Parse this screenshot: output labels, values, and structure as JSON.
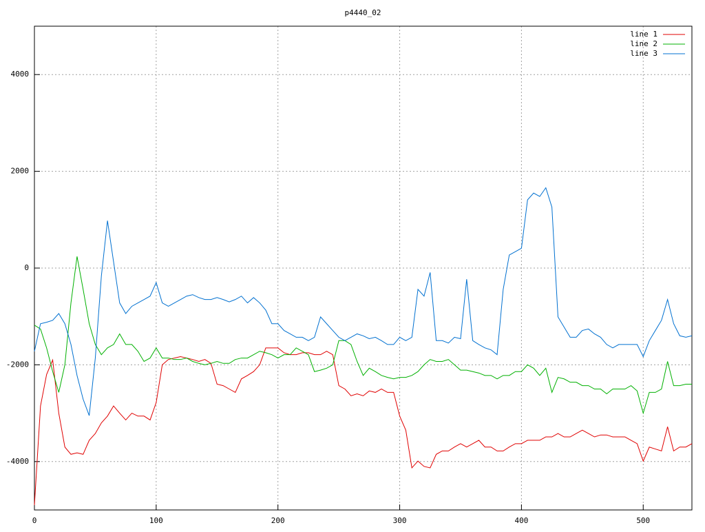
{
  "chart_data": {
    "type": "line",
    "title": "p4440_02",
    "x": [
      0,
      5,
      10,
      15,
      20,
      25,
      30,
      35,
      40,
      45,
      50,
      55,
      60,
      65,
      70,
      75,
      80,
      85,
      90,
      95,
      100,
      105,
      110,
      115,
      120,
      125,
      130,
      135,
      140,
      145,
      150,
      155,
      160,
      165,
      170,
      175,
      180,
      185,
      190,
      195,
      200,
      205,
      210,
      215,
      220,
      225,
      230,
      235,
      240,
      245,
      250,
      255,
      260,
      265,
      270,
      275,
      280,
      285,
      290,
      295,
      300,
      305,
      310,
      315,
      320,
      325,
      330,
      335,
      340,
      345,
      350,
      355,
      360,
      365,
      370,
      375,
      380,
      385,
      390,
      395,
      400,
      405,
      410,
      415,
      420,
      425,
      430,
      435,
      440,
      445,
      450,
      455,
      460,
      465,
      470,
      475,
      480,
      485,
      490,
      495,
      500,
      505,
      510,
      515,
      520,
      525,
      530,
      535,
      540
    ],
    "series": [
      {
        "name": "line 1",
        "color": "#e00000",
        "values": [
          -4900,
          -2850,
          -2200,
          -1900,
          -3000,
          -3700,
          -3850,
          -3820,
          -3850,
          -3560,
          -3420,
          -3200,
          -3060,
          -2850,
          -3000,
          -3140,
          -3000,
          -3060,
          -3060,
          -3140,
          -2780,
          -2000,
          -1890,
          -1860,
          -1830,
          -1860,
          -1890,
          -1930,
          -1890,
          -1970,
          -2400,
          -2430,
          -2500,
          -2570,
          -2290,
          -2220,
          -2140,
          -2000,
          -1650,
          -1650,
          -1650,
          -1750,
          -1790,
          -1790,
          -1750,
          -1750,
          -1790,
          -1790,
          -1720,
          -1790,
          -2430,
          -2500,
          -2640,
          -2600,
          -2640,
          -2540,
          -2570,
          -2500,
          -2570,
          -2570,
          -3060,
          -3350,
          -4130,
          -3990,
          -4100,
          -4130,
          -3850,
          -3780,
          -3780,
          -3700,
          -3630,
          -3700,
          -3630,
          -3560,
          -3700,
          -3700,
          -3780,
          -3780,
          -3700,
          -3630,
          -3630,
          -3560,
          -3560,
          -3560,
          -3490,
          -3490,
          -3420,
          -3490,
          -3490,
          -3420,
          -3350,
          -3420,
          -3490,
          -3450,
          -3450,
          -3490,
          -3490,
          -3490,
          -3560,
          -3630,
          -3990,
          -3700,
          -3740,
          -3780,
          -3280,
          -3780,
          -3700,
          -3700,
          -3630
        ]
      },
      {
        "name": "line 2",
        "color": "#00b000",
        "values": [
          -1180,
          -1260,
          -1650,
          -2140,
          -2570,
          -2000,
          -720,
          240,
          -440,
          -1150,
          -1580,
          -1790,
          -1650,
          -1580,
          -1360,
          -1580,
          -1580,
          -1720,
          -1930,
          -1860,
          -1650,
          -1860,
          -1860,
          -1890,
          -1890,
          -1860,
          -1930,
          -1970,
          -2000,
          -1970,
          -1930,
          -1970,
          -1970,
          -1890,
          -1860,
          -1860,
          -1790,
          -1720,
          -1750,
          -1790,
          -1860,
          -1790,
          -1790,
          -1650,
          -1720,
          -1790,
          -2140,
          -2110,
          -2070,
          -2000,
          -1500,
          -1500,
          -1580,
          -1930,
          -2220,
          -2070,
          -2140,
          -2220,
          -2260,
          -2290,
          -2260,
          -2260,
          -2220,
          -2140,
          -2000,
          -1890,
          -1930,
          -1930,
          -1890,
          -2000,
          -2110,
          -2110,
          -2140,
          -2170,
          -2220,
          -2220,
          -2290,
          -2220,
          -2220,
          -2140,
          -2140,
          -2000,
          -2070,
          -2220,
          -2070,
          -2570,
          -2260,
          -2290,
          -2360,
          -2360,
          -2430,
          -2430,
          -2500,
          -2500,
          -2600,
          -2500,
          -2500,
          -2500,
          -2430,
          -2540,
          -3000,
          -2570,
          -2570,
          -2500,
          -1930,
          -2430,
          -2430,
          -2400,
          -2400
        ]
      },
      {
        "name": "line 3",
        "color": "#0070d0",
        "values": [
          -1720,
          -1150,
          -1120,
          -1080,
          -940,
          -1150,
          -1580,
          -2220,
          -2710,
          -3050,
          -1860,
          -160,
          980,
          130,
          -720,
          -940,
          -790,
          -720,
          -650,
          -580,
          -300,
          -720,
          -790,
          -720,
          -650,
          -580,
          -550,
          -610,
          -650,
          -650,
          -610,
          -650,
          -700,
          -650,
          -580,
          -720,
          -610,
          -720,
          -870,
          -1150,
          -1150,
          -1290,
          -1360,
          -1430,
          -1430,
          -1500,
          -1430,
          -1010,
          -1150,
          -1290,
          -1430,
          -1500,
          -1430,
          -1360,
          -1400,
          -1460,
          -1430,
          -1500,
          -1580,
          -1580,
          -1430,
          -1500,
          -1430,
          -440,
          -580,
          -90,
          -1500,
          -1500,
          -1550,
          -1430,
          -1460,
          -230,
          -1500,
          -1580,
          -1650,
          -1690,
          -1790,
          -440,
          270,
          340,
          410,
          1410,
          1550,
          1480,
          1660,
          1260,
          -1010,
          -1220,
          -1430,
          -1430,
          -1290,
          -1260,
          -1360,
          -1430,
          -1580,
          -1650,
          -1580,
          -1580,
          -1580,
          -1580,
          -1830,
          -1500,
          -1290,
          -1080,
          -650,
          -1150,
          -1400,
          -1430,
          -1400
        ]
      }
    ],
    "xlim": [
      0,
      540
    ],
    "ylim": [
      -5000,
      5000
    ],
    "xticks": [
      0,
      100,
      200,
      300,
      400,
      500
    ],
    "yticks": [
      -4000,
      -2000,
      0,
      2000,
      4000
    ],
    "grid": true,
    "legend": "top-right"
  }
}
